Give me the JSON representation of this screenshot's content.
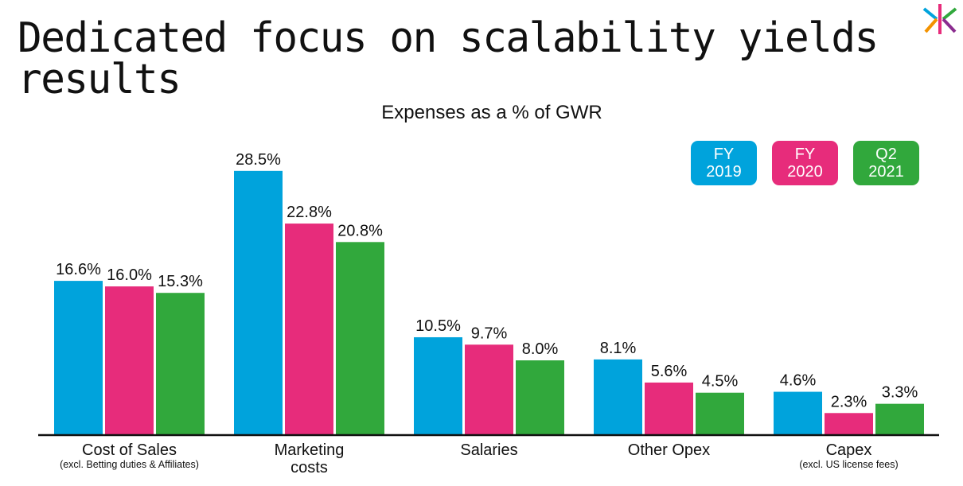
{
  "slide": {
    "title": "Dedicated focus on scalability yields results",
    "logo_icon": "kindred-k-logo-icon"
  },
  "chart_data": {
    "type": "bar",
    "title": "Expenses as a % of GWR",
    "xlabel": "",
    "ylabel": "",
    "ylim": [
      0,
      30
    ],
    "grid": false,
    "legend_placement": "top-right",
    "categories": [
      {
        "label": "Cost of Sales",
        "sublabel": "(excl. Betting duties & Affiliates)"
      },
      {
        "label": "Marketing costs",
        "sublabel": ""
      },
      {
        "label": "Salaries",
        "sublabel": ""
      },
      {
        "label": "Other Opex",
        "sublabel": ""
      },
      {
        "label": "Capex",
        "sublabel": "(excl. US license fees)"
      }
    ],
    "series": [
      {
        "name": "FY 2019",
        "legend_lines": [
          "FY",
          "2019"
        ],
        "color": "#00a3dc",
        "values": [
          16.6,
          28.5,
          10.5,
          8.1,
          4.6
        ],
        "labels": [
          "16.6%",
          "28.5%",
          "10.5%",
          "8.1%",
          "4.6%"
        ]
      },
      {
        "name": "FY 2020",
        "legend_lines": [
          "FY",
          "2020"
        ],
        "color": "#e72c7b",
        "values": [
          16.0,
          22.8,
          9.7,
          5.6,
          2.3
        ],
        "labels": [
          "16.0%",
          "22.8%",
          "9.7%",
          "5.6%",
          "2.3%"
        ]
      },
      {
        "name": "Q2 2021",
        "legend_lines": [
          "Q2",
          "2021"
        ],
        "color": "#31a83c",
        "values": [
          15.3,
          20.8,
          8.0,
          4.5,
          3.3
        ],
        "labels": [
          "15.3%",
          "20.8%",
          "8.0%",
          "4.5%",
          "3.3%"
        ]
      }
    ]
  }
}
